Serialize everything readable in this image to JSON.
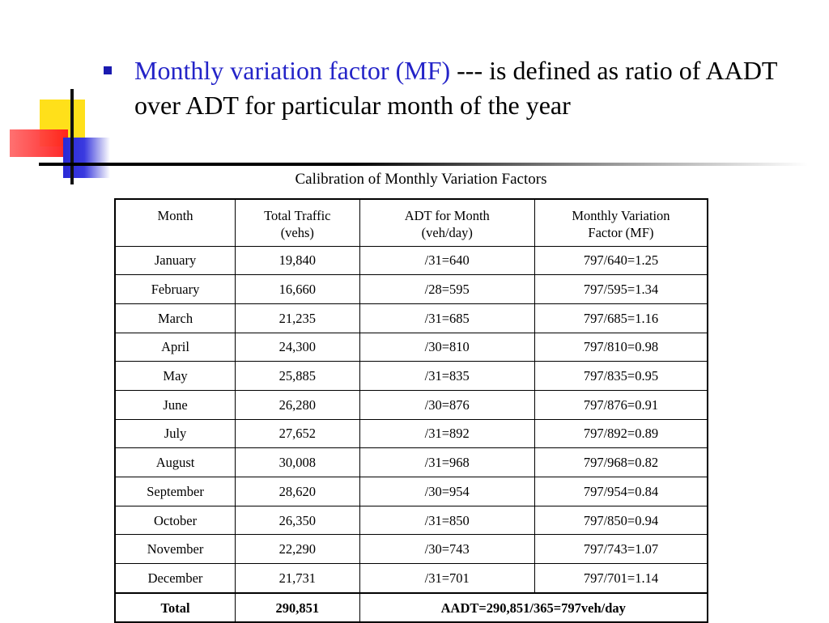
{
  "bullet": {
    "highlight": "Monthly variation factor (MF)",
    "rest": " --- is defined as ratio of AADT over ADT for particular month of the year"
  },
  "table": {
    "caption": "Calibration of Monthly Variation Factors",
    "headers": [
      {
        "line1": "Month",
        "line2": ""
      },
      {
        "line1": "Total Traffic",
        "line2": "(vehs)"
      },
      {
        "line1": "ADT for Month",
        "line2": "(veh/day)"
      },
      {
        "line1": "Monthly Variation",
        "line2": "Factor (MF)"
      }
    ],
    "rows": [
      [
        "January",
        "19,840",
        "/31=640",
        "797/640=1.25"
      ],
      [
        "February",
        "16,660",
        "/28=595",
        "797/595=1.34"
      ],
      [
        "March",
        "21,235",
        "/31=685",
        "797/685=1.16"
      ],
      [
        "April",
        "24,300",
        "/30=810",
        "797/810=0.98"
      ],
      [
        "May",
        "25,885",
        "/31=835",
        "797/835=0.95"
      ],
      [
        "June",
        "26,280",
        "/30=876",
        "797/876=0.91"
      ],
      [
        "July",
        "27,652",
        "/31=892",
        "797/892=0.89"
      ],
      [
        "August",
        "30,008",
        "/31=968",
        "797/968=0.82"
      ],
      [
        "September",
        "28,620",
        "/30=954",
        "797/954=0.84"
      ],
      [
        "October",
        "26,350",
        "/31=850",
        "797/850=0.94"
      ],
      [
        "November",
        "22,290",
        "/30=743",
        "797/743=1.07"
      ],
      [
        "December",
        "21,731",
        "/31=701",
        "797/701=1.14"
      ]
    ],
    "total": {
      "label": "Total",
      "traffic": "290,851",
      "aadt": "AADT=290,851/365=797veh/day"
    }
  },
  "colors": {
    "highlight": "#2424c8",
    "bullet": "#1a1ab0",
    "logo_yellow": "#ffe01a",
    "logo_blue": "#2a2ad6",
    "logo_red": "#ff3a3a"
  }
}
